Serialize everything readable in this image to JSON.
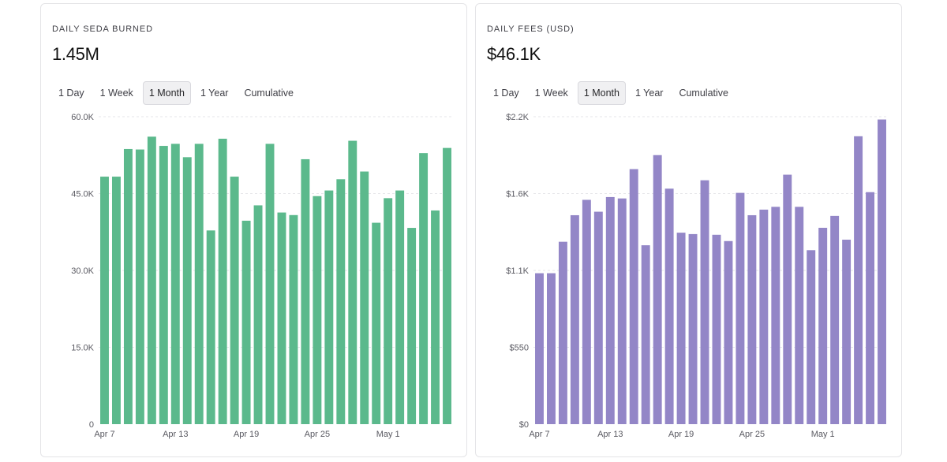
{
  "tabs": [
    "1 Day",
    "1 Week",
    "1 Month",
    "1 Year",
    "Cumulative"
  ],
  "active_tab": "1 Month",
  "panels": {
    "left": {
      "title": "DAILY SEDA BURNED",
      "value": "1.45M",
      "bar_color": "#5bb98c"
    },
    "right": {
      "title": "DAILY FEES (USD)",
      "value": "$46.1K",
      "bar_color": "#9386c7"
    }
  },
  "chart_data": [
    {
      "type": "bar",
      "title": "DAILY SEDA BURNED",
      "categories": [
        "Apr 7",
        "Apr 8",
        "Apr 9",
        "Apr 10",
        "Apr 11",
        "Apr 12",
        "Apr 13",
        "Apr 14",
        "Apr 15",
        "Apr 16",
        "Apr 17",
        "Apr 18",
        "Apr 19",
        "Apr 20",
        "Apr 21",
        "Apr 22",
        "Apr 23",
        "Apr 24",
        "Apr 25",
        "Apr 26",
        "Apr 27",
        "Apr 28",
        "Apr 29",
        "Apr 30",
        "May 1",
        "May 2",
        "May 3",
        "May 4",
        "May 5",
        "May 6"
      ],
      "values": [
        48300,
        48300,
        53700,
        53600,
        56100,
        54300,
        54700,
        52100,
        54700,
        37800,
        55700,
        48300,
        39700,
        42700,
        54700,
        41300,
        40800,
        51700,
        44500,
        45600,
        47800,
        55300,
        49300,
        39300,
        44100,
        45600,
        38300,
        52900,
        41700,
        53900
      ],
      "yticks": [
        "0",
        "15.0K",
        "30.0K",
        "45.0K",
        "60.0K"
      ],
      "ylim": [
        0,
        60000
      ],
      "xticks": [
        "Apr 7",
        "Apr 13",
        "Apr 19",
        "Apr 25",
        "May 1"
      ],
      "grid": true
    },
    {
      "type": "bar",
      "title": "DAILY FEES (USD)",
      "categories": [
        "Apr 7",
        "Apr 8",
        "Apr 9",
        "Apr 10",
        "Apr 11",
        "Apr 12",
        "Apr 13",
        "Apr 14",
        "Apr 15",
        "Apr 16",
        "Apr 17",
        "Apr 18",
        "Apr 19",
        "Apr 20",
        "Apr 21",
        "Apr 22",
        "Apr 23",
        "Apr 24",
        "Apr 25",
        "Apr 26",
        "Apr 27",
        "Apr 28",
        "Apr 29",
        "Apr 30",
        "May 1",
        "May 2",
        "May 3",
        "May 4",
        "May 5",
        "May 6"
      ],
      "values": [
        1080,
        1080,
        1305,
        1495,
        1605,
        1520,
        1625,
        1615,
        1825,
        1280,
        1925,
        1685,
        1370,
        1360,
        1745,
        1355,
        1310,
        1655,
        1495,
        1535,
        1555,
        1785,
        1555,
        1245,
        1405,
        1490,
        1320,
        2060,
        1660,
        2180
      ],
      "yticks": [
        "$0",
        "$550",
        "$1.1K",
        "$1.6K",
        "$2.2K"
      ],
      "ylim": [
        0,
        2200
      ],
      "xticks": [
        "Apr 7",
        "Apr 13",
        "Apr 19",
        "Apr 25",
        "May 1"
      ],
      "grid": true
    }
  ]
}
